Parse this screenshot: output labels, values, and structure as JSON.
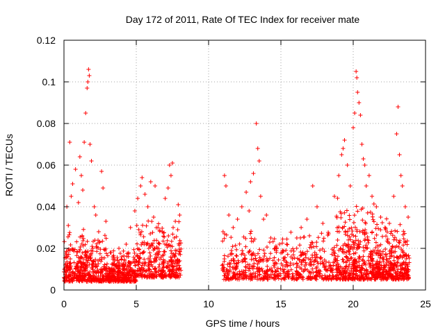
{
  "chart_data": {
    "type": "scatter",
    "title": "Day 172 of 2011, Rate Of TEC Index for receiver mate",
    "xlabel": "GPS time / hours",
    "ylabel": "ROTI / TECUs",
    "xlim": [
      0,
      25
    ],
    "ylim": [
      0,
      0.12
    ],
    "xticks": [
      0,
      5,
      10,
      15,
      20,
      25
    ],
    "yticks": [
      0,
      0.02,
      0.04,
      0.06,
      0.08,
      0.1,
      0.12
    ],
    "xtick_labels": [
      "0",
      "5",
      "10",
      "15",
      "20",
      "25"
    ],
    "ytick_labels": [
      "0",
      "0.02",
      "0.04",
      "0.06",
      "0.08",
      "0.1",
      "0.12"
    ],
    "grid": true,
    "marker": "+",
    "color": "#ff0000",
    "series": [
      {
        "name": "ROTI",
        "points": [
          [
            0.1,
            0.012
          ],
          [
            0.3,
            0.031
          ],
          [
            0.5,
            0.045
          ],
          [
            0.6,
            0.051
          ],
          [
            0.8,
            0.058
          ],
          [
            1.0,
            0.042
          ],
          [
            1.2,
            0.055
          ],
          [
            1.4,
            0.071
          ],
          [
            1.5,
            0.085
          ],
          [
            1.6,
            0.097
          ],
          [
            1.7,
            0.106
          ],
          [
            1.75,
            0.103
          ],
          [
            1.65,
            0.1
          ],
          [
            1.8,
            0.07
          ],
          [
            1.9,
            0.062
          ],
          [
            2.1,
            0.04
          ],
          [
            2.4,
            0.028
          ],
          [
            2.6,
            0.057
          ],
          [
            2.7,
            0.049
          ],
          [
            2.9,
            0.033
          ],
          [
            0.4,
            0.071
          ],
          [
            1.1,
            0.064
          ],
          [
            1.3,
            0.048
          ],
          [
            2.2,
            0.036
          ],
          [
            0.2,
            0.04
          ],
          [
            3.2,
            0.018
          ],
          [
            3.5,
            0.014
          ],
          [
            3.8,
            0.02
          ],
          [
            4.0,
            0.016
          ],
          [
            4.3,
            0.022
          ],
          [
            4.6,
            0.03
          ],
          [
            4.9,
            0.038
          ],
          [
            5.1,
            0.044
          ],
          [
            5.3,
            0.05
          ],
          [
            5.4,
            0.054
          ],
          [
            5.6,
            0.046
          ],
          [
            5.8,
            0.04
          ],
          [
            6.0,
            0.052
          ],
          [
            6.2,
            0.035
          ],
          [
            6.5,
            0.03
          ],
          [
            6.8,
            0.028
          ],
          [
            7.0,
            0.044
          ],
          [
            7.2,
            0.049
          ],
          [
            7.4,
            0.055
          ],
          [
            7.5,
            0.061
          ],
          [
            7.7,
            0.033
          ],
          [
            7.9,
            0.041
          ],
          [
            8.0,
            0.036
          ],
          [
            6.3,
            0.05
          ],
          [
            7.3,
            0.06
          ],
          [
            11.0,
            0.028
          ],
          [
            11.1,
            0.055
          ],
          [
            11.2,
            0.05
          ],
          [
            11.4,
            0.036
          ],
          [
            11.7,
            0.03
          ],
          [
            12.0,
            0.034
          ],
          [
            12.3,
            0.04
          ],
          [
            12.6,
            0.047
          ],
          [
            12.9,
            0.052
          ],
          [
            13.1,
            0.056
          ],
          [
            13.3,
            0.08
          ],
          [
            13.4,
            0.068
          ],
          [
            13.6,
            0.045
          ],
          [
            13.8,
            0.034
          ],
          [
            14.0,
            0.036
          ],
          [
            14.3,
            0.025
          ],
          [
            14.6,
            0.02
          ],
          [
            14.9,
            0.022
          ],
          [
            12.8,
            0.038
          ],
          [
            13.5,
            0.062
          ],
          [
            15.1,
            0.018
          ],
          [
            15.4,
            0.022
          ],
          [
            15.8,
            0.015
          ],
          [
            16.1,
            0.025
          ],
          [
            16.4,
            0.03
          ],
          [
            16.8,
            0.034
          ],
          [
            17.2,
            0.05
          ],
          [
            17.5,
            0.04
          ],
          [
            17.9,
            0.032
          ],
          [
            18.3,
            0.027
          ],
          [
            18.7,
            0.045
          ],
          [
            19.0,
            0.055
          ],
          [
            19.2,
            0.065
          ],
          [
            19.4,
            0.072
          ],
          [
            19.6,
            0.06
          ],
          [
            19.8,
            0.05
          ],
          [
            20.0,
            0.078
          ],
          [
            20.1,
            0.085
          ],
          [
            20.2,
            0.105
          ],
          [
            20.25,
            0.102
          ],
          [
            20.3,
            0.095
          ],
          [
            20.4,
            0.09
          ],
          [
            20.5,
            0.084
          ],
          [
            20.6,
            0.07
          ],
          [
            20.7,
            0.063
          ],
          [
            20.9,
            0.05
          ],
          [
            21.1,
            0.055
          ],
          [
            21.3,
            0.045
          ],
          [
            21.6,
            0.04
          ],
          [
            21.9,
            0.035
          ],
          [
            22.2,
            0.03
          ],
          [
            22.5,
            0.032
          ],
          [
            22.8,
            0.045
          ],
          [
            23.0,
            0.075
          ],
          [
            23.1,
            0.088
          ],
          [
            23.2,
            0.065
          ],
          [
            23.3,
            0.055
          ],
          [
            23.4,
            0.05
          ],
          [
            23.6,
            0.04
          ],
          [
            23.8,
            0.035
          ],
          [
            19.3,
            0.068
          ],
          [
            20.8,
            0.06
          ]
        ],
        "clusters": [
          {
            "x_range": [
              0.0,
              3.0
            ],
            "y_range": [
              0.004,
              0.03
            ],
            "count": 420
          },
          {
            "x_range": [
              3.0,
              5.0
            ],
            "y_range": [
              0.004,
              0.02
            ],
            "count": 320
          },
          {
            "x_range": [
              5.0,
              8.1
            ],
            "y_range": [
              0.006,
              0.035
            ],
            "count": 340
          },
          {
            "x_range": [
              10.9,
              15.0
            ],
            "y_range": [
              0.005,
              0.03
            ],
            "count": 300
          },
          {
            "x_range": [
              15.0,
              18.8
            ],
            "y_range": [
              0.005,
              0.03
            ],
            "count": 280
          },
          {
            "x_range": [
              18.8,
              21.5
            ],
            "y_range": [
              0.005,
              0.045
            ],
            "count": 380
          },
          {
            "x_range": [
              21.5,
              23.9
            ],
            "y_range": [
              0.005,
              0.035
            ],
            "count": 360
          }
        ]
      }
    ]
  }
}
